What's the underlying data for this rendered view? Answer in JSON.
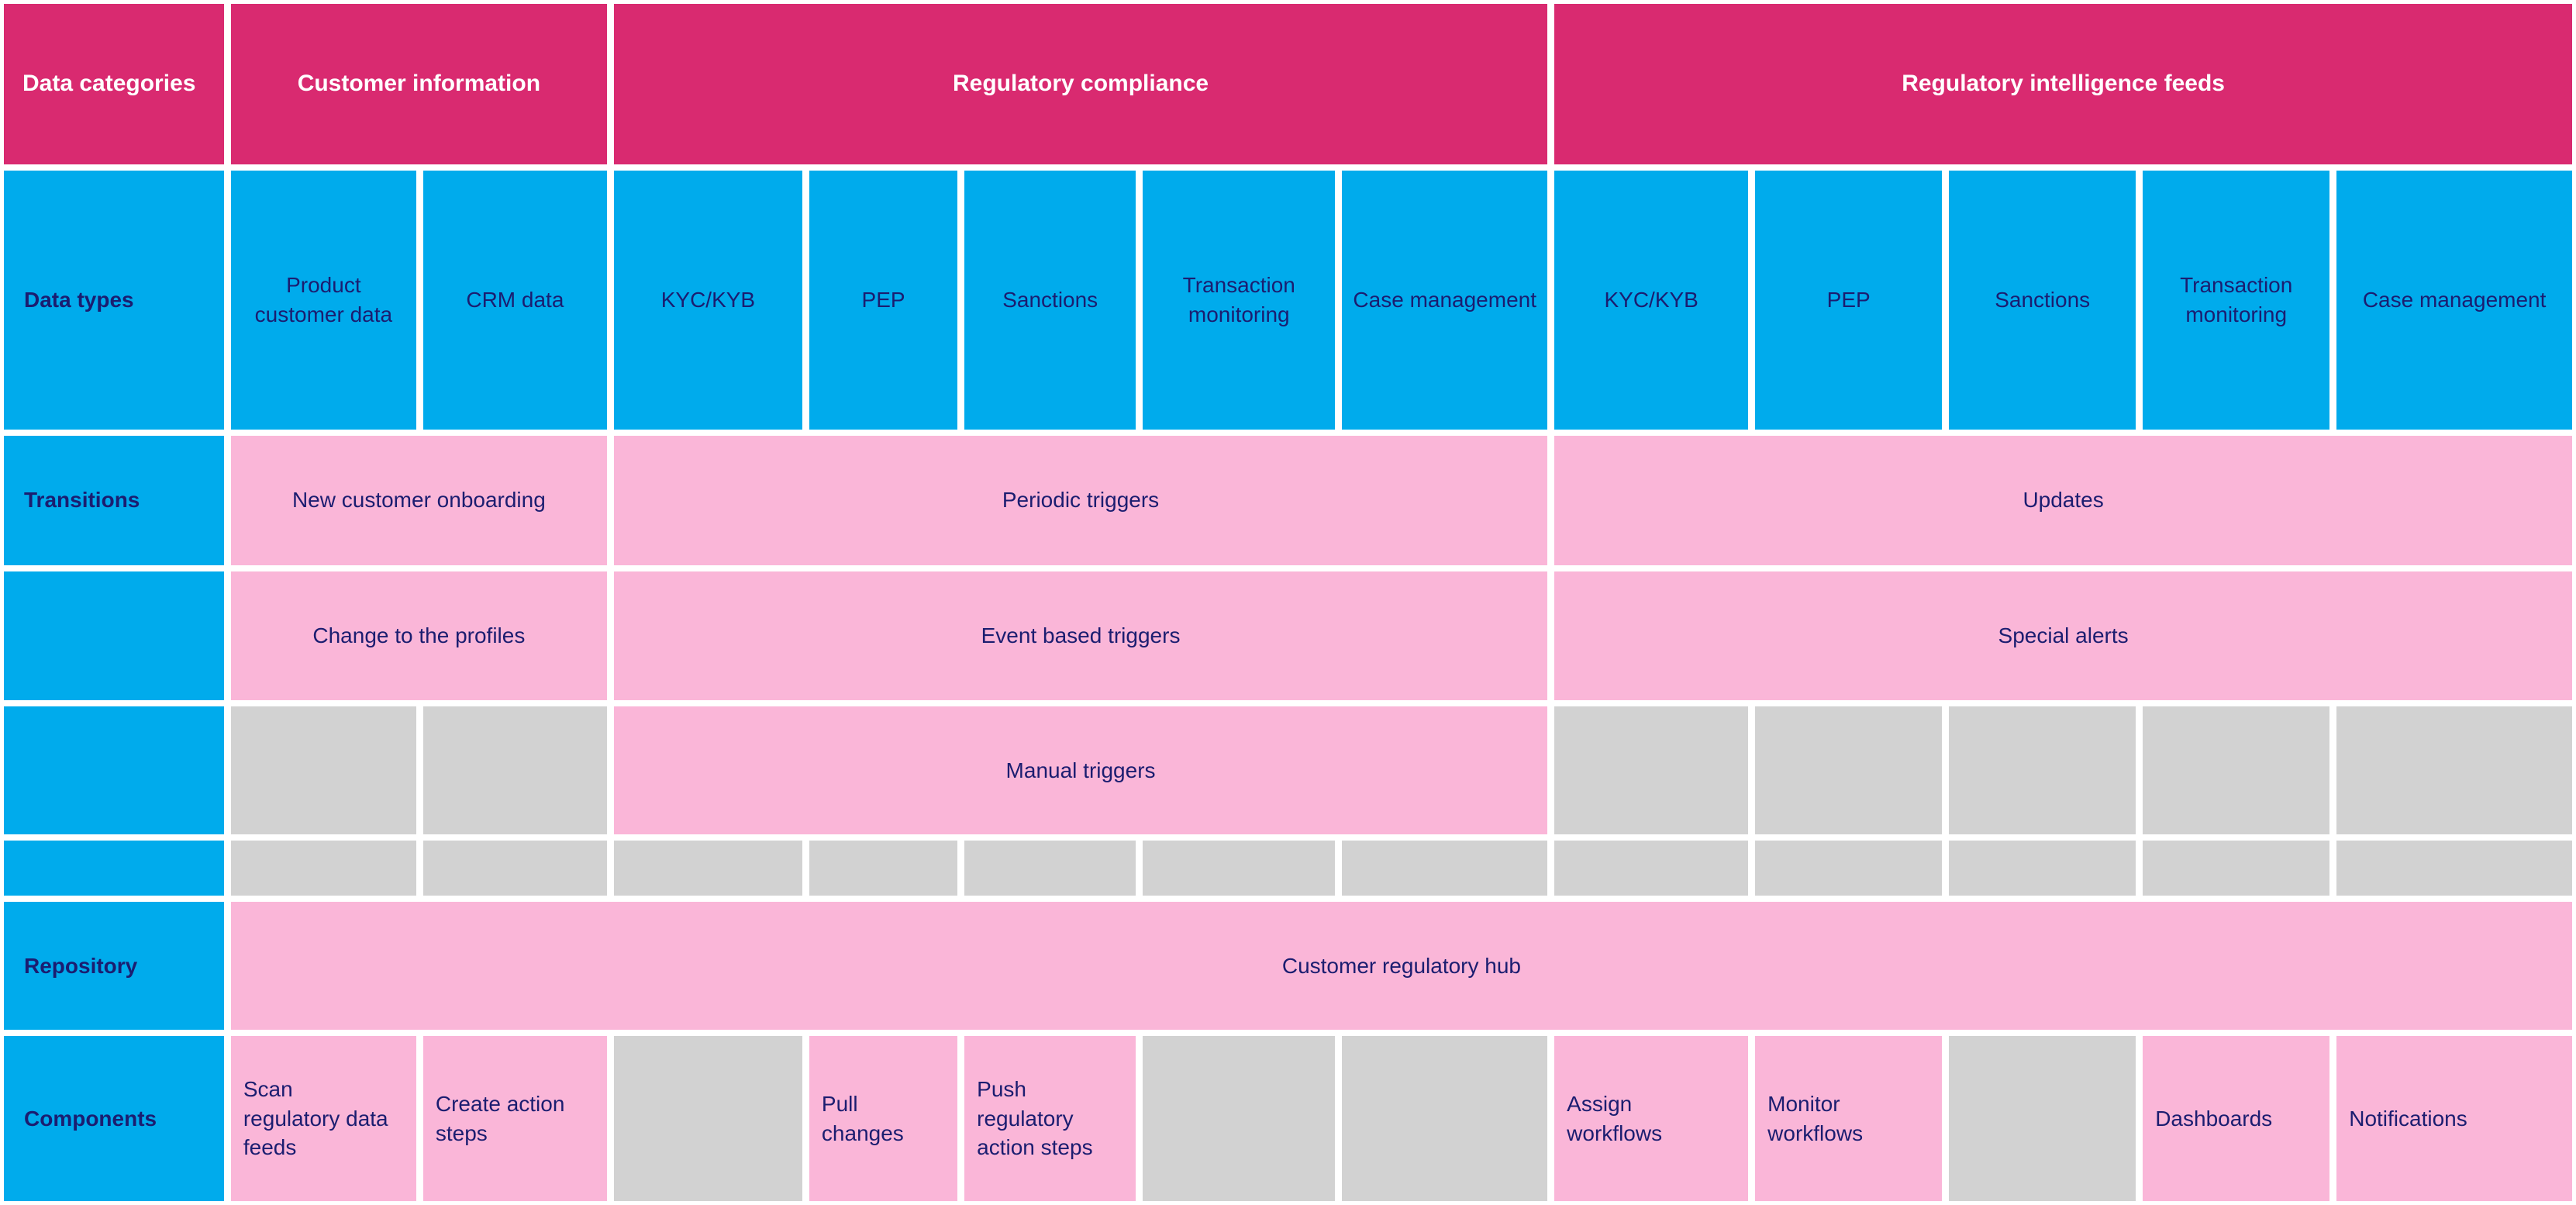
{
  "palette": {
    "magenta": "#d92a70",
    "blue": "#00abec",
    "pink": "#fab6d8",
    "gray": "#d2d2d2",
    "text_navy": "#1b1d70",
    "text_white": "#ffffff"
  },
  "header": {
    "data_categories": "Data categories",
    "customer_information": "Customer information",
    "regulatory_compliance": "Regulatory compliance",
    "regulatory_intelligence_feeds": "Regulatory intelligence feeds"
  },
  "data_types": {
    "label": "Data types",
    "cells": [
      "Product customer data",
      "CRM data",
      "KYC/KYB",
      "PEP",
      "Sanctions",
      "Transaction monitoring",
      "Case management",
      "KYC/KYB",
      "PEP",
      "Sanctions",
      "Transaction monitoring",
      "Case management"
    ]
  },
  "transitions": {
    "label": "Transitions",
    "row1": [
      "New customer onboarding",
      "Periodic triggers",
      "Updates"
    ],
    "row2": [
      "Change to the profiles",
      "Event based triggers",
      "Special alerts"
    ],
    "row3": [
      "Manual triggers"
    ]
  },
  "repository": {
    "label": "Repository",
    "cell": "Customer regulatory hub"
  },
  "components": {
    "label": "Components",
    "scan_regulatory_data_feeds": "Scan regulatory data feeds",
    "create_action_steps": "Create action steps",
    "pull_changes": "Pull changes",
    "push_regulatory_action_steps": "Push regulatory action steps",
    "assign_workflows": "Assign workflows",
    "monitor_workflows": "Monitor workflows",
    "dashboards": "Dashboards",
    "notifications": "Notifications"
  }
}
